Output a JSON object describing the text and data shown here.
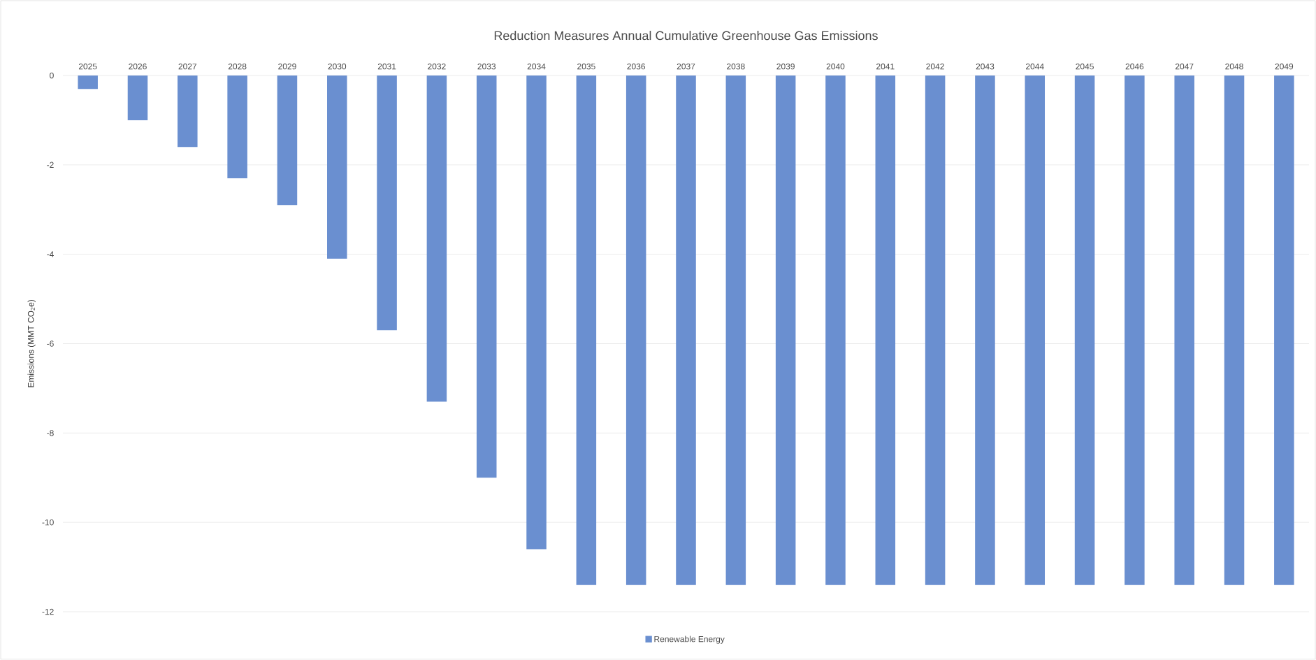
{
  "chart_data": {
    "type": "bar",
    "title": "Reduction Measures Annual Cumulative Greenhouse  Gas Emissions",
    "ylabel": "Emissions (MMT CO$_{2}$e)",
    "categories": [
      "2025",
      "2026",
      "2027",
      "2028",
      "2029",
      "2030",
      "2031",
      "2032",
      "2033",
      "2034",
      "2035",
      "2036",
      "2037",
      "2038",
      "2039",
      "2040",
      "2041",
      "2042",
      "2043",
      "2044",
      "2045",
      "2046",
      "2047",
      "2048",
      "2049"
    ],
    "series": [
      {
        "name": "Renewable Energy",
        "color": "#6a8fd0",
        "values": [
          -0.3,
          -1.0,
          -1.6,
          -2.3,
          -2.9,
          -4.1,
          -5.7,
          -7.3,
          -9.0,
          -10.6,
          -11.4,
          -11.4,
          -11.4,
          -11.4,
          -11.4,
          -11.4,
          -11.4,
          -11.4,
          -11.4,
          -11.4,
          -11.4,
          -11.4,
          -11.4,
          -11.4,
          -11.4
        ]
      }
    ],
    "ylim": [
      -12,
      0
    ],
    "yticks": [
      0,
      -2,
      -4,
      -6,
      -8,
      -10,
      -12
    ],
    "grid": "y",
    "legend": "bottom"
  }
}
